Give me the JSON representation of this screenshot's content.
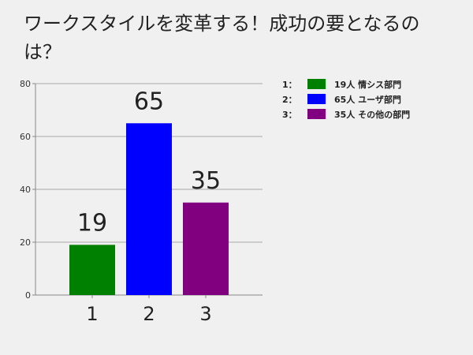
{
  "title": "ワークスタイルを変革する！成功の要となるのは？",
  "legend": [
    {
      "index": "1：",
      "color": "#008000",
      "text": "19人 情シス部門"
    },
    {
      "index": "2：",
      "color": "#0000ff",
      "text": "65人 ユーザ部門"
    },
    {
      "index": "3：",
      "color": "#800080",
      "text": "35人 その他の部門"
    }
  ],
  "chart_data": {
    "type": "bar",
    "title": "ワークスタイルを変革する！成功の要となるのは？",
    "categories": [
      "1",
      "2",
      "3"
    ],
    "values": [
      19,
      65,
      35
    ],
    "colors": [
      "#008000",
      "#0000ff",
      "#800080"
    ],
    "data_labels": [
      "19",
      "65",
      "35"
    ],
    "ylim": [
      0,
      80
    ],
    "yticks": [
      0,
      20,
      40,
      60,
      80
    ],
    "grid": true,
    "legend_position": "right"
  }
}
